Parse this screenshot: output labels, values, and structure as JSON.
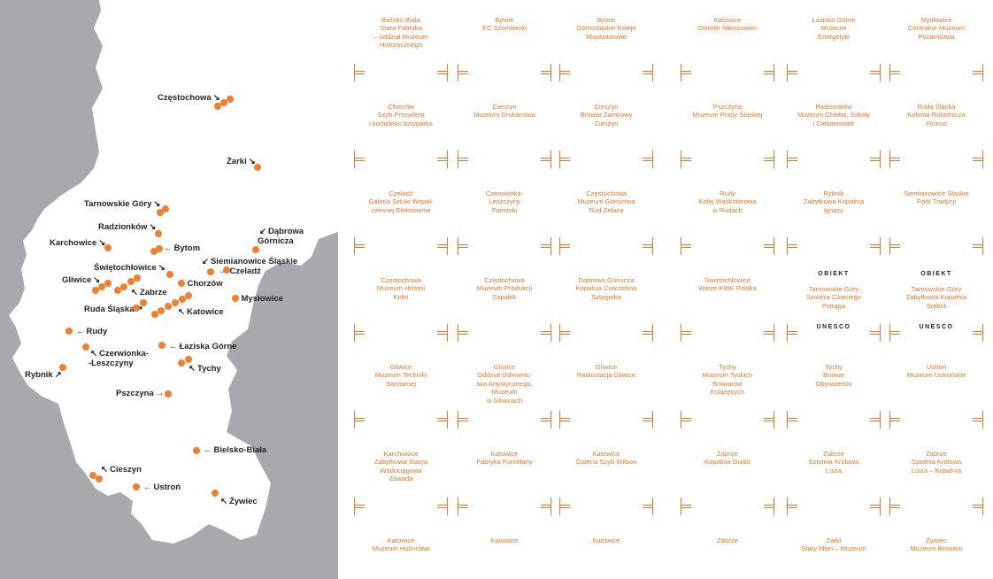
{
  "map": {
    "colors": {
      "background": "#a7a9ac",
      "region": "#ffffff",
      "dot": "#f07f2e",
      "label": "#231f20"
    },
    "cities": [
      {
        "name": "Częstochowa",
        "arrow": "↘"
      },
      {
        "name": "Żarki",
        "arrow": "↘"
      },
      {
        "name": "Tarnowskie Góry",
        "arrow": "↘"
      },
      {
        "name": "Radzionków",
        "arrow": "↘"
      },
      {
        "name": "Dąbrowa\nGórnicza",
        "arrow": "↙"
      },
      {
        "name": "Karchowice",
        "arrow": "↘"
      },
      {
        "name": "Bytom",
        "arrow": "←"
      },
      {
        "name": "Siemianowice Śląskie",
        "arrow": "↙"
      },
      {
        "name": "Świętochłowice",
        "arrow": "↘"
      },
      {
        "name": "Czeladź",
        "arrow": "←"
      },
      {
        "name": "Gliwice",
        "arrow": "↘"
      },
      {
        "name": "Zabrze",
        "arrow": "↖"
      },
      {
        "name": "Chorzów",
        "arrow": "←"
      },
      {
        "name": "Mysłowice",
        "arrow": "←"
      },
      {
        "name": "Ruda Śląska",
        "arrow": "↗"
      },
      {
        "name": "Katowice",
        "arrow": "↖"
      },
      {
        "name": "Rudy",
        "arrow": "←"
      },
      {
        "name": "Łaziska Górne",
        "arrow": "←"
      },
      {
        "name": "Czerwionka-\n-Leszczyny",
        "arrow": "↖"
      },
      {
        "name": "Tychy",
        "arrow": "↖"
      },
      {
        "name": "Rybnik",
        "arrow": "↗"
      },
      {
        "name": "Pszczyna",
        "arrow": "→"
      },
      {
        "name": "Bielsko-Biała",
        "arrow": "←"
      },
      {
        "name": "Cieszyn",
        "arrow": "↖"
      },
      {
        "name": "Ustroń",
        "arrow": "←"
      },
      {
        "name": "Żywiec",
        "arrow": "↖"
      }
    ]
  },
  "grid": {
    "accent": "#e8772a",
    "unesco_top": "OBIEKT",
    "unesco_bottom": "UNESCO",
    "cells": [
      {
        "text": "Bielsko-Biała\nStara Fabryka\n– oddział Muzeum\nHistorycznego"
      },
      {
        "text": "Bytom\nEC Szombierki"
      },
      {
        "text": "Bytom\nGórnośląskie Koleje\nWąskotorowe"
      },
      {
        "text": "Katowice\nOsiedle Nikiszowiec"
      },
      {
        "text": "Łaziska Górne\nMuzeum\nEnergetyki"
      },
      {
        "text": "Mysłowice\nCentralne Muzeum\nPożarnictwa"
      },
      {
        "text": "Chorzów\nSzyb Prezydent\ni kompleks Sztygarka"
      },
      {
        "text": "Cieszyn\nMuzeum Drukarstwa"
      },
      {
        "text": "Cieszyn\nBrowar Zamkowy\nCieszyn"
      },
      {
        "text": "Pszczyna\nMuzeum Prasy Śląskiej"
      },
      {
        "text": "Radzionków\nMuzeum Chleba, Szkoły\ni Ciekawostek"
      },
      {
        "text": "Ruda Śląska\nKolonia Robotnicza\nFicinus"
      },
      {
        "text": "Czeladź\nGaleria Sztuki Współ-\nczesnej Elektrownia"
      },
      {
        "text": "Czerwionka-\nLeszczyny\nFamiloki"
      },
      {
        "text": "Częstochowa\nMuzeum Górnictwa\nRud Żelaza"
      },
      {
        "text": "Rudy\nKolej Wąskotorowa\nw Rudach"
      },
      {
        "text": "Rybnik\nZabytkowa Kopalnia\nIgnacy"
      },
      {
        "text": "Siemianowice Śląskie\nPark Tradycji"
      },
      {
        "text": "Częstochowa\nMuzeum Historii\nKolei"
      },
      {
        "text": "Częstochowa\nMuzeum Produkcji\nZapałek"
      },
      {
        "text": "Dąbrowa Górnicza\nKopalnia Ćwiczebna\nSztygarka"
      },
      {
        "text": "Świętochłowice\nWieże KWK Polska"
      },
      {
        "text": "Tarnowskie Góry\nSztolnia Czarnego\nPstrąga",
        "unesco": true
      },
      {
        "text": "Tarnowskie Góry\nZabytkowa Kopalnia\nSrebra",
        "unesco": true
      },
      {
        "text": "Gliwice\nMuzeum Techniki\nSanitarnej"
      },
      {
        "text": "Gliwice\nOddział Odlewnic-\ntwa Artystycznego,\nMuzeum\nw Gliwicach"
      },
      {
        "text": "Gliwice\nRadiostacja Gliwice"
      },
      {
        "text": "Tychy\nMuzeum Tyskich\nBrowarów\nKsiążęcych"
      },
      {
        "text": "Tychy\nBrowar\nObywatelski"
      },
      {
        "text": "Ustroń\nMuzeum Ustrońskie"
      },
      {
        "text": "Karchowice\nZabytkowa Stacja\nWodociągowa\nZawada"
      },
      {
        "text": "Katowice\nFabryka Porcelany"
      },
      {
        "text": "Katowice\nGaleria Szyb Wilson"
      },
      {
        "text": "Zabrze\nKopalnia Guido"
      },
      {
        "text": "Zabrze\nSztolnia Królowa\nLuiza"
      },
      {
        "text": "Zabrze\nSztolnia Królowa\nLuiza – Kopalnia"
      },
      {
        "text": "Katowice\nMuzeum Hutnictwa"
      },
      {
        "text": "Katowice"
      },
      {
        "text": "Katowice"
      },
      {
        "text": "Zabrze"
      },
      {
        "text": "Żarki\nStary Młyn – Muzeum"
      },
      {
        "text": "Żywiec\nMuzeum Browaru"
      }
    ]
  }
}
